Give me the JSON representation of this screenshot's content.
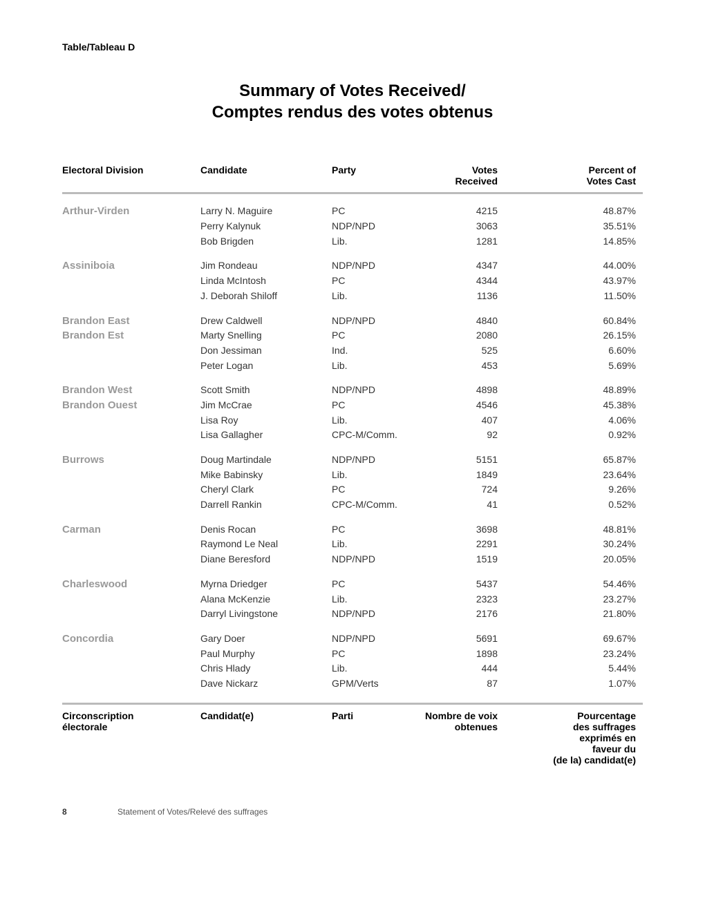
{
  "table_label": "Table/Tableau D",
  "title_line1": "Summary of Votes Received/",
  "title_line2": "Comptes rendus des votes obtenus",
  "headers": {
    "division": "Electoral Division",
    "candidate": "Candidate",
    "party": "Party",
    "votes": "Votes Received",
    "percent_line1": "Percent of",
    "percent_line2": "Votes Cast"
  },
  "footer_headers": {
    "division_line1": "Circonscription",
    "division_line2": "électorale",
    "candidate": "Candidat(e)",
    "party": "Parti",
    "votes_line1": "Nombre de voix",
    "votes_line2": "obtenues",
    "percent_line1": "Pourcentage",
    "percent_line2": "des suffrages",
    "percent_line3": "exprimés en",
    "percent_line4": "faveur du",
    "percent_line5": "(de la) candidat(e)"
  },
  "sections": [
    {
      "division_lines": [
        "Arthur-Virden"
      ],
      "rows": [
        {
          "candidate": "Larry N. Maguire",
          "party": "PC",
          "votes": "4215",
          "percent": "48.87%"
        },
        {
          "candidate": "Perry Kalynuk",
          "party": "NDP/NPD",
          "votes": "3063",
          "percent": "35.51%"
        },
        {
          "candidate": "Bob Brigden",
          "party": "Lib.",
          "votes": "1281",
          "percent": "14.85%"
        }
      ]
    },
    {
      "division_lines": [
        "Assiniboia"
      ],
      "rows": [
        {
          "candidate": "Jim Rondeau",
          "party": "NDP/NPD",
          "votes": "4347",
          "percent": "44.00%"
        },
        {
          "candidate": "Linda McIntosh",
          "party": "PC",
          "votes": "4344",
          "percent": "43.97%"
        },
        {
          "candidate": "J. Deborah Shiloff",
          "party": "Lib.",
          "votes": "1136",
          "percent": "11.50%"
        }
      ]
    },
    {
      "division_lines": [
        "Brandon East",
        "Brandon Est"
      ],
      "rows": [
        {
          "candidate": "Drew Caldwell",
          "party": "NDP/NPD",
          "votes": "4840",
          "percent": "60.84%"
        },
        {
          "candidate": "Marty Snelling",
          "party": "PC",
          "votes": "2080",
          "percent": "26.15%"
        },
        {
          "candidate": "Don Jessiman",
          "party": "Ind.",
          "votes": "525",
          "percent": "6.60%"
        },
        {
          "candidate": "Peter Logan",
          "party": "Lib.",
          "votes": "453",
          "percent": "5.69%"
        }
      ]
    },
    {
      "division_lines": [
        "Brandon West",
        "Brandon Ouest"
      ],
      "rows": [
        {
          "candidate": "Scott Smith",
          "party": "NDP/NPD",
          "votes": "4898",
          "percent": "48.89%"
        },
        {
          "candidate": "Jim McCrae",
          "party": "PC",
          "votes": "4546",
          "percent": "45.38%"
        },
        {
          "candidate": "Lisa Roy",
          "party": "Lib.",
          "votes": "407",
          "percent": "4.06%"
        },
        {
          "candidate": "Lisa Gallagher",
          "party": "CPC-M/Comm.",
          "votes": "92",
          "percent": "0.92%"
        }
      ]
    },
    {
      "division_lines": [
        "Burrows"
      ],
      "rows": [
        {
          "candidate": "Doug Martindale",
          "party": "NDP/NPD",
          "votes": "5151",
          "percent": "65.87%"
        },
        {
          "candidate": "Mike Babinsky",
          "party": "Lib.",
          "votes": "1849",
          "percent": "23.64%"
        },
        {
          "candidate": "Cheryl Clark",
          "party": "PC",
          "votes": "724",
          "percent": "9.26%"
        },
        {
          "candidate": "Darrell Rankin",
          "party": "CPC-M/Comm.",
          "votes": "41",
          "percent": "0.52%"
        }
      ]
    },
    {
      "division_lines": [
        "Carman"
      ],
      "rows": [
        {
          "candidate": "Denis Rocan",
          "party": "PC",
          "votes": "3698",
          "percent": "48.81%"
        },
        {
          "candidate": "Raymond Le Neal",
          "party": "Lib.",
          "votes": "2291",
          "percent": "30.24%"
        },
        {
          "candidate": "Diane Beresford",
          "party": "NDP/NPD",
          "votes": "1519",
          "percent": "20.05%"
        }
      ]
    },
    {
      "division_lines": [
        "Charleswood"
      ],
      "rows": [
        {
          "candidate": "Myrna Driedger",
          "party": "PC",
          "votes": "5437",
          "percent": "54.46%"
        },
        {
          "candidate": "Alana McKenzie",
          "party": "Lib.",
          "votes": "2323",
          "percent": "23.27%"
        },
        {
          "candidate": "Darryl Livingstone",
          "party": "NDP/NPD",
          "votes": "2176",
          "percent": "21.80%"
        }
      ]
    },
    {
      "division_lines": [
        "Concordia"
      ],
      "rows": [
        {
          "candidate": "Gary Doer",
          "party": "NDP/NPD",
          "votes": "5691",
          "percent": "69.67%"
        },
        {
          "candidate": "Paul Murphy",
          "party": "PC",
          "votes": "1898",
          "percent": "23.24%"
        },
        {
          "candidate": "Chris Hlady",
          "party": "Lib.",
          "votes": "444",
          "percent": "5.44%"
        },
        {
          "candidate": "Dave Nickarz",
          "party": "GPM/Verts",
          "votes": "87",
          "percent": "1.07%"
        }
      ]
    }
  ],
  "page_number": "8",
  "page_footer_text": "Statement of Votes/Relevé des suffrages"
}
